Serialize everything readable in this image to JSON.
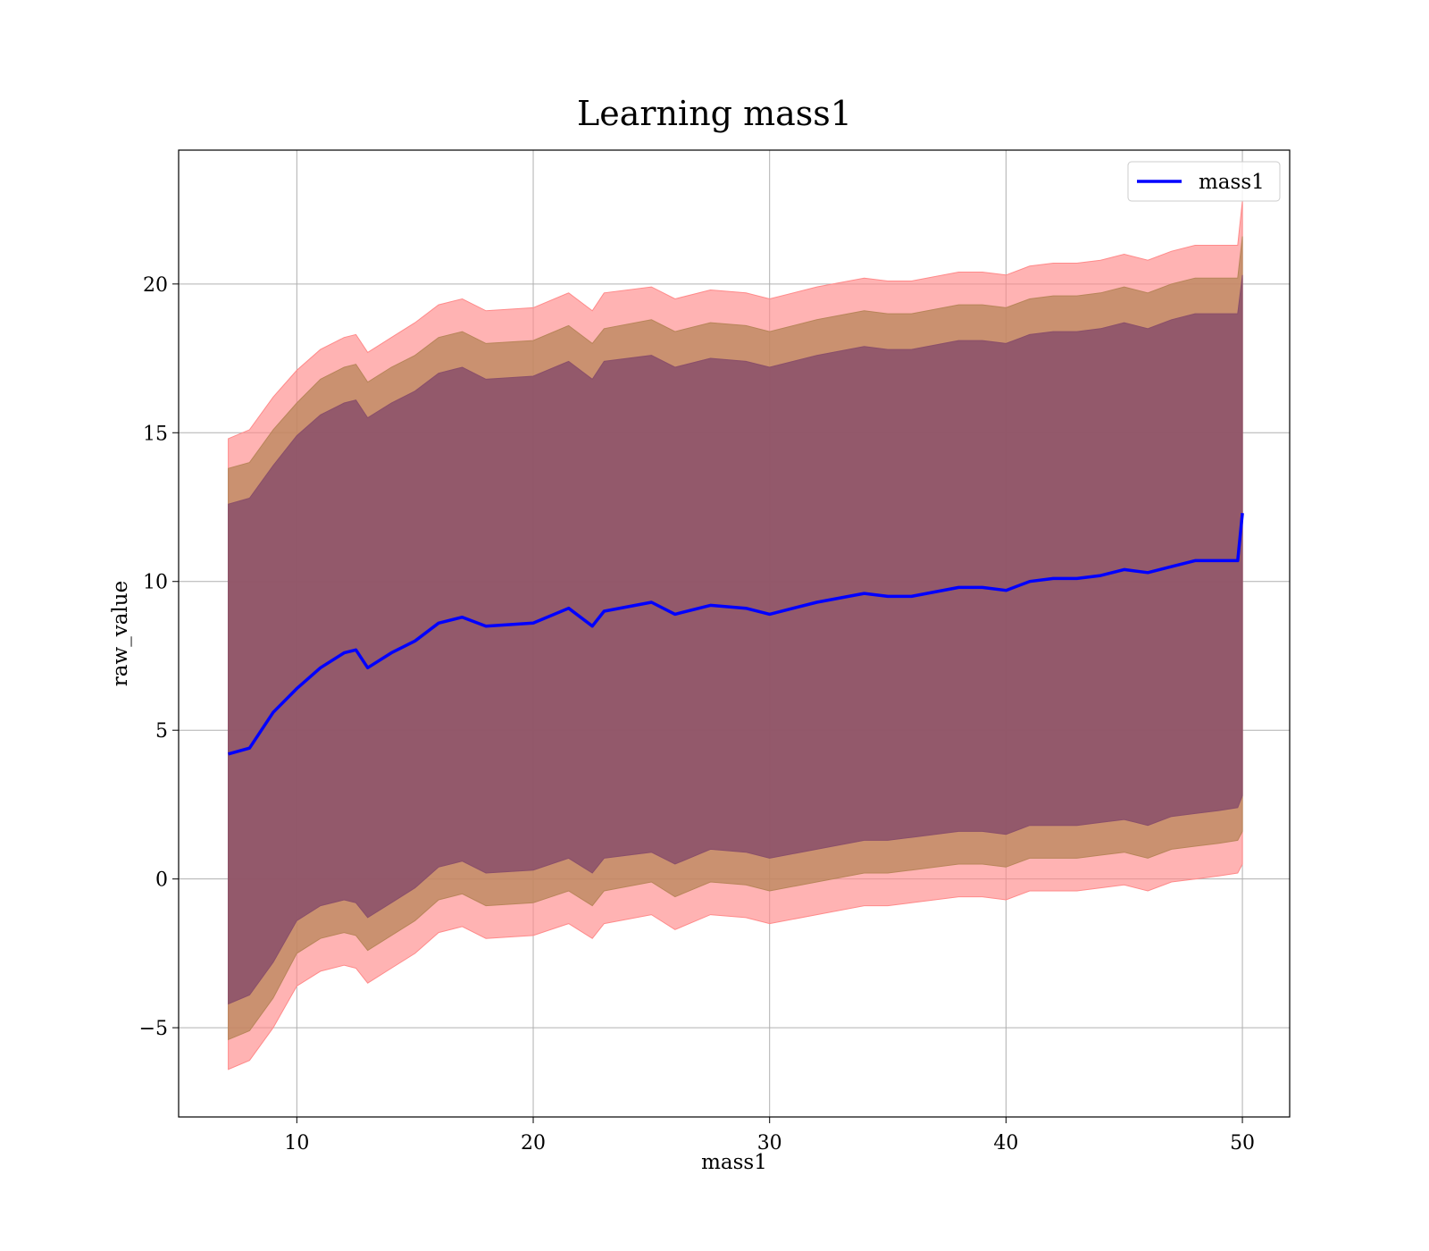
{
  "chart_data": {
    "type": "line",
    "title": "Learning mass1",
    "xlabel": "mass1",
    "ylabel": "raw_value",
    "xlim": [
      5,
      52
    ],
    "ylim": [
      -8,
      24.5
    ],
    "xticks": [
      10,
      20,
      30,
      40,
      50
    ],
    "yticks": [
      -5,
      0,
      5,
      10,
      15,
      20
    ],
    "xtick_labels": [
      "10",
      "20",
      "30",
      "40",
      "50"
    ],
    "ytick_labels": [
      "−5",
      "0",
      "5",
      "10",
      "15",
      "20"
    ],
    "grid": true,
    "legend": {
      "placement": "top-right",
      "entries": [
        "mass1"
      ]
    },
    "colors": {
      "line": "#0000ff",
      "band_outer": "#ff8a8a",
      "band_mid": "#b8855a",
      "band_inner": "#8a4f6a"
    },
    "series": [
      {
        "name": "mass1",
        "x": [
          7.1,
          8.0,
          9.0,
          10.0,
          11.0,
          12.0,
          12.5,
          13.0,
          14.0,
          15.0,
          16.0,
          17.0,
          18.0,
          20.0,
          21.5,
          22.5,
          23.0,
          25.0,
          26.0,
          27.5,
          29.0,
          30.0,
          32.0,
          34.0,
          35.0,
          36.0,
          38.0,
          39.0,
          40.0,
          41.0,
          42.0,
          43.0,
          44.0,
          45.0,
          46.0,
          47.0,
          48.0,
          49.0,
          49.8,
          50.0
        ],
        "y": [
          4.2,
          4.4,
          5.6,
          6.4,
          7.1,
          7.6,
          7.7,
          7.1,
          7.6,
          8.0,
          8.6,
          8.8,
          8.5,
          8.6,
          9.1,
          8.5,
          9.0,
          9.3,
          8.9,
          9.2,
          9.1,
          8.9,
          9.3,
          9.6,
          9.5,
          9.5,
          9.8,
          9.8,
          9.7,
          10.0,
          10.1,
          10.1,
          10.2,
          10.4,
          10.3,
          10.5,
          10.7,
          10.7,
          10.7,
          12.3
        ]
      }
    ],
    "bands": [
      {
        "x": [
          7.1,
          8.0,
          9.0,
          10.0,
          11.0,
          12.0,
          12.5,
          13.0,
          14.0,
          15.0,
          16.0,
          17.0,
          18.0,
          20.0,
          21.5,
          22.5,
          23.0,
          25.0,
          26.0,
          27.5,
          29.0,
          30.0,
          32.0,
          34.0,
          35.0,
          36.0,
          38.0,
          39.0,
          40.0,
          41.0,
          42.0,
          43.0,
          44.0,
          45.0,
          46.0,
          47.0,
          48.0,
          49.0,
          49.8,
          50.0
        ],
        "lower": [
          -6.4,
          -6.1,
          -5.0,
          -3.6,
          -3.1,
          -2.9,
          -3.0,
          -3.5,
          -3.0,
          -2.5,
          -1.8,
          -1.6,
          -2.0,
          -1.9,
          -1.5,
          -2.0,
          -1.5,
          -1.2,
          -1.7,
          -1.2,
          -1.3,
          -1.5,
          -1.2,
          -0.9,
          -0.9,
          -0.8,
          -0.6,
          -0.6,
          -0.7,
          -0.4,
          -0.4,
          -0.4,
          -0.3,
          -0.2,
          -0.4,
          -0.1,
          0.0,
          0.1,
          0.2,
          0.5
        ],
        "upper": [
          14.8,
          15.1,
          16.2,
          17.1,
          17.8,
          18.2,
          18.3,
          17.7,
          18.2,
          18.7,
          19.3,
          19.5,
          19.1,
          19.2,
          19.7,
          19.1,
          19.7,
          19.9,
          19.5,
          19.8,
          19.7,
          19.5,
          19.9,
          20.2,
          20.1,
          20.1,
          20.4,
          20.4,
          20.3,
          20.6,
          20.7,
          20.7,
          20.8,
          21.0,
          20.8,
          21.1,
          21.3,
          21.3,
          21.3,
          22.8
        ]
      },
      {
        "x": [
          7.1,
          8.0,
          9.0,
          10.0,
          11.0,
          12.0,
          12.5,
          13.0,
          14.0,
          15.0,
          16.0,
          17.0,
          18.0,
          20.0,
          21.5,
          22.5,
          23.0,
          25.0,
          26.0,
          27.5,
          29.0,
          30.0,
          32.0,
          34.0,
          35.0,
          36.0,
          38.0,
          39.0,
          40.0,
          41.0,
          42.0,
          43.0,
          44.0,
          45.0,
          46.0,
          47.0,
          48.0,
          49.0,
          49.8,
          50.0
        ],
        "lower": [
          -5.4,
          -5.1,
          -4.0,
          -2.5,
          -2.0,
          -1.8,
          -1.9,
          -2.4,
          -1.9,
          -1.4,
          -0.7,
          -0.5,
          -0.9,
          -0.8,
          -0.4,
          -0.9,
          -0.4,
          -0.1,
          -0.6,
          -0.1,
          -0.2,
          -0.4,
          -0.1,
          0.2,
          0.2,
          0.3,
          0.5,
          0.5,
          0.4,
          0.7,
          0.7,
          0.7,
          0.8,
          0.9,
          0.7,
          1.0,
          1.1,
          1.2,
          1.3,
          1.6
        ],
        "upper": [
          13.8,
          14.0,
          15.1,
          16.0,
          16.8,
          17.2,
          17.3,
          16.7,
          17.2,
          17.6,
          18.2,
          18.4,
          18.0,
          18.1,
          18.6,
          18.0,
          18.5,
          18.8,
          18.4,
          18.7,
          18.6,
          18.4,
          18.8,
          19.1,
          19.0,
          19.0,
          19.3,
          19.3,
          19.2,
          19.5,
          19.6,
          19.6,
          19.7,
          19.9,
          19.7,
          20.0,
          20.2,
          20.2,
          20.2,
          21.6
        ]
      },
      {
        "x": [
          7.1,
          8.0,
          9.0,
          10.0,
          11.0,
          12.0,
          12.5,
          13.0,
          14.0,
          15.0,
          16.0,
          17.0,
          18.0,
          20.0,
          21.5,
          22.5,
          23.0,
          25.0,
          26.0,
          27.5,
          29.0,
          30.0,
          32.0,
          34.0,
          35.0,
          36.0,
          38.0,
          39.0,
          40.0,
          41.0,
          42.0,
          43.0,
          44.0,
          45.0,
          46.0,
          47.0,
          48.0,
          49.0,
          49.8,
          50.0
        ],
        "lower": [
          -4.2,
          -3.9,
          -2.8,
          -1.4,
          -0.9,
          -0.7,
          -0.8,
          -1.3,
          -0.8,
          -0.3,
          0.4,
          0.6,
          0.2,
          0.3,
          0.7,
          0.2,
          0.7,
          0.9,
          0.5,
          1.0,
          0.9,
          0.7,
          1.0,
          1.3,
          1.3,
          1.4,
          1.6,
          1.6,
          1.5,
          1.8,
          1.8,
          1.8,
          1.9,
          2.0,
          1.8,
          2.1,
          2.2,
          2.3,
          2.4,
          2.8
        ],
        "upper": [
          12.6,
          12.8,
          13.9,
          14.9,
          15.6,
          16.0,
          16.1,
          15.5,
          16.0,
          16.4,
          17.0,
          17.2,
          16.8,
          16.9,
          17.4,
          16.8,
          17.4,
          17.6,
          17.2,
          17.5,
          17.4,
          17.2,
          17.6,
          17.9,
          17.8,
          17.8,
          18.1,
          18.1,
          18.0,
          18.3,
          18.4,
          18.4,
          18.5,
          18.7,
          18.5,
          18.8,
          19.0,
          19.0,
          19.0,
          20.3
        ]
      }
    ]
  }
}
